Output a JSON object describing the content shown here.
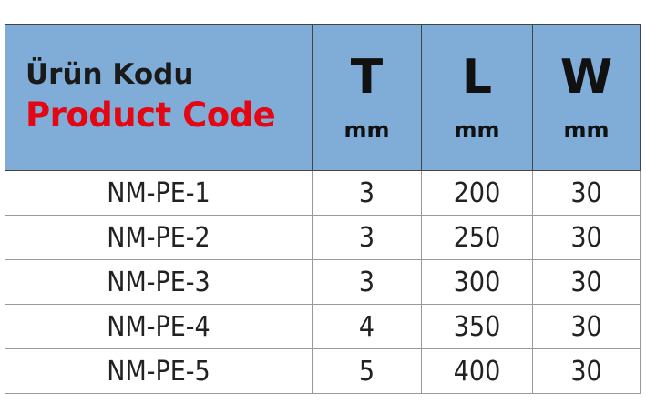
{
  "header": {
    "code_tr": "Ürün Kodu",
    "code_en": "Product Code",
    "columns": [
      {
        "symbol": "T",
        "unit": "mm"
      },
      {
        "symbol": "L",
        "unit": "mm"
      },
      {
        "symbol": "W",
        "unit": "mm"
      }
    ]
  },
  "rows": [
    [
      "NM-PE-1",
      "3",
      "200",
      "30"
    ],
    [
      "NM-PE-2",
      "3",
      "250",
      "30"
    ],
    [
      "NM-PE-3",
      "3",
      "300",
      "30"
    ],
    [
      "NM-PE-4",
      "4",
      "350",
      "30"
    ],
    [
      "NM-PE-5",
      "5",
      "400",
      "30"
    ]
  ],
  "colors": {
    "header_bg": "#80acd8",
    "accent_red": "#e30613"
  }
}
